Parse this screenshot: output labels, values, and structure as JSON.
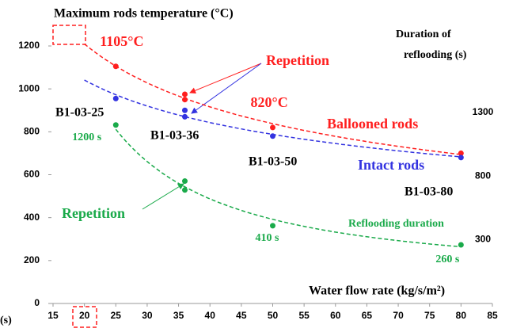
{
  "chart_data": {
    "type": "scatter",
    "title": "Maximum rods temperature (°C)",
    "xlabel": "Water flow rate (kg/s/m²)",
    "y2label": [
      "Duration of",
      "reflooding (s)"
    ],
    "xlim": [
      15,
      85
    ],
    "xticks": [
      15,
      20,
      25,
      30,
      35,
      40,
      45,
      50,
      55,
      60,
      65,
      70,
      75,
      80,
      85
    ],
    "ylim": [
      0,
      1200
    ],
    "yticks": [
      0,
      200,
      400,
      600,
      800,
      1000,
      1200
    ],
    "y2lim": [
      -200,
      1820
    ],
    "y2ticks": [
      300,
      800,
      1300
    ],
    "series": [
      {
        "name": "Ballooned rods",
        "color": "#ff1f1f",
        "x": [
          25,
          36,
          36,
          50,
          80
        ],
        "values": [
          1105,
          975,
          950,
          820,
          700
        ],
        "value_labels": [
          "1105°C",
          null,
          null,
          "820°C",
          null
        ]
      },
      {
        "name": "Intact rods",
        "color": "#3333e0",
        "x": [
          25,
          36,
          36,
          50,
          80
        ],
        "values": [
          955,
          900,
          870,
          780,
          680
        ]
      },
      {
        "name": "Reflooding duration",
        "color": "#1aaa4a",
        "axis": "y2",
        "x": [
          25,
          36,
          36,
          50,
          80
        ],
        "values": [
          1200,
          760,
          690,
          410,
          260
        ],
        "value_labels": [
          "1200 s",
          null,
          null,
          "410 s",
          "260 s"
        ]
      }
    ],
    "annotations": [
      {
        "text": "Repetition",
        "color": "#ff1f1f"
      },
      {
        "text": "Repetition",
        "color": "#1aaa4a"
      },
      {
        "text": "B1-03-25",
        "color": "#000000"
      },
      {
        "text": "B1-03-36",
        "color": "#000000"
      },
      {
        "text": "B1-03-50",
        "color": "#000000"
      },
      {
        "text": "B1-03-80",
        "color": "#000000"
      },
      {
        "text": "(s)",
        "color": "#000000"
      }
    ]
  }
}
